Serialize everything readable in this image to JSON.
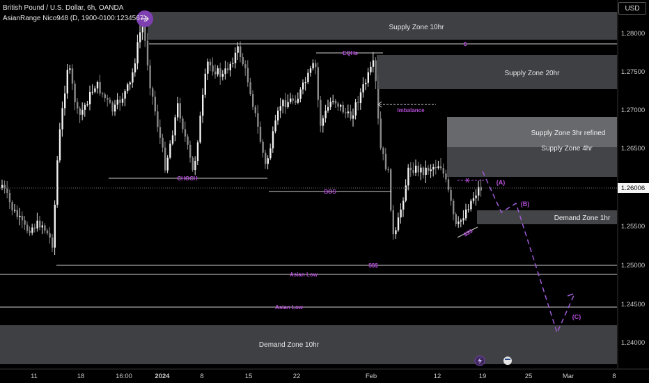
{
  "header": {
    "symbol_line": "British Pound / U.S. Dollar, 6h, OANDA",
    "indicator_line": "AsianRange Nico948 (D, 1900-0100:1234567)"
  },
  "currency_button": "USD",
  "price_axis": {
    "ticks": [
      "1.28000",
      "1.27500",
      "1.27000",
      "1.26500",
      "1.26000",
      "1.25500",
      "1.25000",
      "1.24500",
      "1.24000"
    ],
    "current_price": "1.26006"
  },
  "time_axis": {
    "ticks": [
      "11",
      "18",
      "16:00",
      "2024",
      "8",
      "15",
      "22",
      "Feb",
      "12",
      "19",
      "25",
      "Mar",
      "8"
    ]
  },
  "zones": {
    "supply_10hr": "Supply Zone 10hr",
    "supply_20hr": "Supply Zone 20hr",
    "supply_3hr": "Supply Zone 3hr refined",
    "supply_4hr": "Supply Zone 4hr",
    "demand_1hr": "Demand Zone 1hr",
    "demand_10hr": "Demand Zone 10hr"
  },
  "labels": {
    "dollar_top": "$",
    "eqhs": "EQHs",
    "imbalance": "Imbalance",
    "choch": "CHOCH",
    "bos": "BOS",
    "dollar_low": "$$$",
    "asian_low_1": "Asian Low",
    "asian_low_2": "Asian Low",
    "sss": "$$$",
    "x_mark": "X",
    "wave_a": "(A)",
    "wave_b": "(B)",
    "wave_c": "(C)"
  },
  "icons": [
    "arrow-right-icon",
    "lightning-icon",
    "flag-icon"
  ],
  "colors": {
    "accent": "#9c27b0",
    "label": "#b34dd6",
    "zone": "#4a4b50",
    "zone_light": "#6a6b70"
  }
}
